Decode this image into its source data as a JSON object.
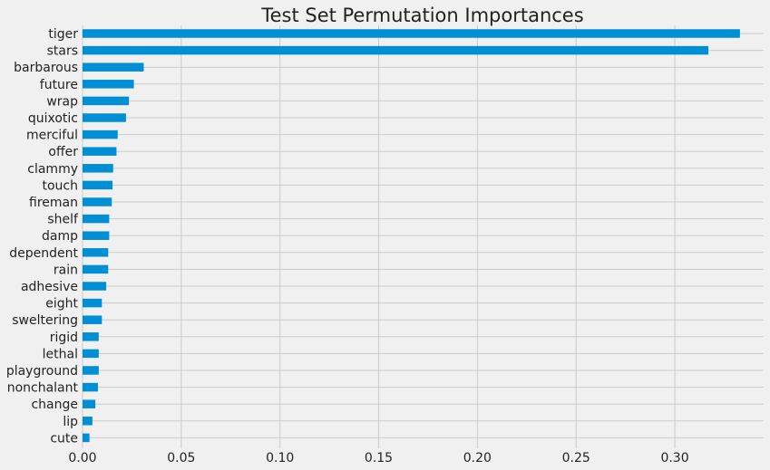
{
  "chart_data": {
    "type": "bar",
    "orientation": "horizontal",
    "title": "Test Set Permutation Importances",
    "xlabel": "",
    "ylabel": "",
    "xlim": [
      0,
      0.345
    ],
    "grid": true,
    "legend": "none",
    "bar_color": "#008fd5",
    "background_color": "#f0f0f0",
    "xticks": [
      0.0,
      0.05,
      0.1,
      0.15,
      0.2,
      0.25,
      0.3
    ],
    "xtick_labels": [
      "0.00",
      "0.05",
      "0.10",
      "0.15",
      "0.20",
      "0.25",
      "0.30"
    ],
    "categories": [
      "tiger",
      "stars",
      "barbarous",
      "future",
      "wrap",
      "quixotic",
      "merciful",
      "offer",
      "clammy",
      "touch",
      "fireman",
      "shelf",
      "damp",
      "dependent",
      "rain",
      "adhesive",
      "eight",
      "sweltering",
      "rigid",
      "lethal",
      "playground",
      "nonchalant",
      "change",
      "lip",
      "cute"
    ],
    "values": [
      0.333,
      0.317,
      0.031,
      0.026,
      0.0235,
      0.022,
      0.0178,
      0.0172,
      0.0155,
      0.0152,
      0.0148,
      0.0135,
      0.0135,
      0.013,
      0.013,
      0.012,
      0.0098,
      0.0098,
      0.0082,
      0.0082,
      0.0082,
      0.0078,
      0.0065,
      0.005,
      0.0035
    ]
  }
}
